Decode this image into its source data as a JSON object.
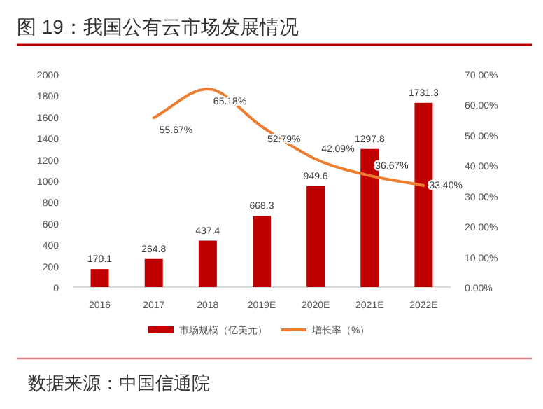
{
  "chart_data": {
    "type": "bar",
    "title": "图 19：我国公有云市场发展情况",
    "categories": [
      "2016",
      "2017",
      "2018",
      "2019E",
      "2020E",
      "2021E",
      "2022E"
    ],
    "series": [
      {
        "name": "市场规模（亿美元）",
        "color": "#c00000",
        "values": [
          170.1,
          264.8,
          437.4,
          668.3,
          949.6,
          1297.8,
          1731.3
        ]
      },
      {
        "name": "增长率（%）",
        "type": "line",
        "axis": "y2",
        "color": "#ed7d31",
        "values": [
          null,
          55.67,
          65.18,
          52.79,
          42.09,
          36.67,
          33.4
        ],
        "value_labels": [
          null,
          "55.67%",
          "65.18%",
          "52.79%",
          "42.09%",
          "36.67%",
          "33.40%"
        ]
      }
    ],
    "ylim": [
      0,
      2000
    ],
    "yticks": [
      0,
      200,
      400,
      600,
      800,
      1000,
      1200,
      1400,
      1600,
      1800,
      2000
    ],
    "y2lim": [
      0,
      70
    ],
    "y2ticks": [
      {
        "value": 0,
        "label": "0.00%"
      },
      {
        "value": 10,
        "label": "10.00%"
      },
      {
        "value": 20,
        "label": "20.00%"
      },
      {
        "value": 30,
        "label": "30.00%"
      },
      {
        "value": 40,
        "label": "40.00%"
      },
      {
        "value": 50,
        "label": "50.00%"
      },
      {
        "value": 60,
        "label": "60.00%"
      },
      {
        "value": 70,
        "label": "70.00%"
      }
    ],
    "data_labels": true,
    "legend": "bottom",
    "grid": false,
    "annotations": [
      "数据来源：中国信通院"
    ]
  }
}
